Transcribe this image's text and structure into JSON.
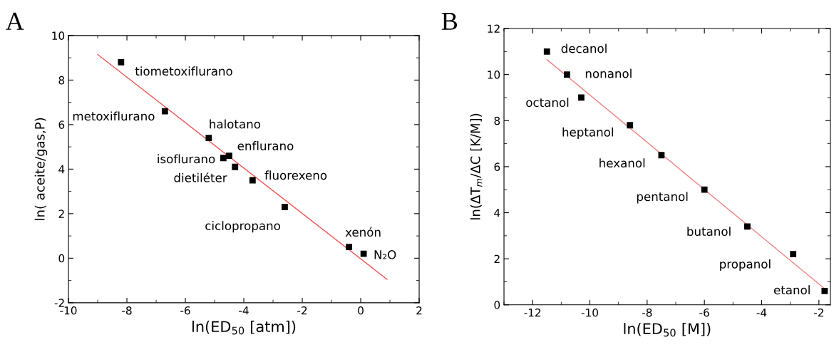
{
  "chart_data": [
    {
      "type": "scatter",
      "title": "A",
      "xlabel": "ln(ED$_{50}$ [atm])",
      "ylabel": "ln( aceite/gas,P)",
      "xlim": [
        -10,
        2
      ],
      "ylim": [
        -2,
        10
      ],
      "xticks": [
        -10,
        -8,
        -6,
        -4,
        -2,
        0,
        2
      ],
      "yticks": [
        -2,
        0,
        2,
        4,
        6,
        8,
        10
      ],
      "grid": false,
      "legend": false,
      "series": [
        {
          "marker": "square",
          "color": "#000000",
          "x": [
            -8.2,
            -6.7,
            -5.2,
            -4.5,
            -4.7,
            -4.3,
            -3.7,
            -2.6,
            -0.4,
            0.1
          ],
          "values": [
            8.8,
            6.6,
            5.4,
            4.6,
            4.5,
            4.1,
            3.5,
            2.3,
            0.5,
            0.2
          ]
        },
        {
          "type": "line",
          "color": "#f05050",
          "x": [
            -9.0,
            0.9
          ],
          "values": [
            9.15,
            -0.95
          ]
        }
      ],
      "annotations": [
        {
          "text": "tiometoxiflurano",
          "x": -8.2,
          "y": 8.8
        },
        {
          "text": "metoxiflurano",
          "x": -6.7,
          "y": 6.6
        },
        {
          "text": "halotano",
          "x": -5.2,
          "y": 5.4
        },
        {
          "text": "enflurano",
          "x": -4.5,
          "y": 4.6
        },
        {
          "text": "isoflurano",
          "x": -4.7,
          "y": 4.5
        },
        {
          "text": "dietiléter",
          "x": -4.3,
          "y": 4.1
        },
        {
          "text": "fluorexeno",
          "x": -3.7,
          "y": 3.5
        },
        {
          "text": "ciclopropano",
          "x": -2.6,
          "y": 2.3
        },
        {
          "text": "xenón",
          "x": -0.4,
          "y": 0.5
        },
        {
          "text": "N₂O",
          "x": 0.1,
          "y": 0.2
        }
      ]
    },
    {
      "type": "scatter",
      "title": "B",
      "xlabel": "ln(ED$_{50}$ [M])",
      "ylabel": "ln(ΔT$_{m}$/ΔC [K/M])",
      "xlim": [
        -13,
        -1.6
      ],
      "ylim": [
        0,
        12
      ],
      "xticks": [
        -12,
        -10,
        -8,
        -6,
        -4,
        -2
      ],
      "yticks": [
        0,
        2,
        4,
        6,
        8,
        10,
        12
      ],
      "grid": false,
      "legend": false,
      "series": [
        {
          "marker": "square",
          "color": "#000000",
          "x": [
            -11.5,
            -10.8,
            -10.3,
            -8.6,
            -7.5,
            -6.0,
            -4.5,
            -2.9,
            -1.8
          ],
          "values": [
            11.0,
            10.0,
            9.0,
            7.8,
            6.5,
            5.0,
            3.4,
            2.2,
            0.6
          ]
        },
        {
          "type": "line",
          "color": "#f08080",
          "x": [
            -11.5,
            -1.85
          ],
          "values": [
            10.65,
            0.75
          ]
        }
      ],
      "annotations": [
        {
          "text": "decanol",
          "x": -11.5,
          "y": 11.0
        },
        {
          "text": "nonanol",
          "x": -10.8,
          "y": 10.0
        },
        {
          "text": "octanol",
          "x": -10.3,
          "y": 9.0
        },
        {
          "text": "heptanol",
          "x": -8.6,
          "y": 7.8
        },
        {
          "text": "hexanol",
          "x": -7.5,
          "y": 6.5
        },
        {
          "text": "pentanol",
          "x": -6.0,
          "y": 5.0
        },
        {
          "text": "butanol",
          "x": -4.5,
          "y": 3.4
        },
        {
          "text": "propanol",
          "x": -2.9,
          "y": 2.2
        },
        {
          "text": "etanol",
          "x": -1.8,
          "y": 0.6
        }
      ]
    }
  ]
}
